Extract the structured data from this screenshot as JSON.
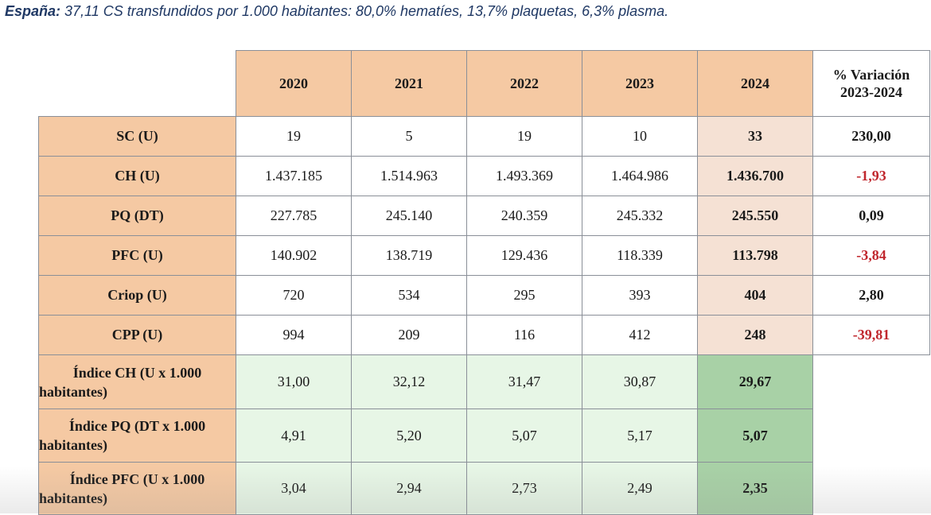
{
  "headline": {
    "bold": "España:",
    "text": " 37,11 CS transfundidos por 1.000 habitantes: 80,0% hematíes, 13,7% plaquetas, 6,3% plasma."
  },
  "table": {
    "years": [
      "2020",
      "2021",
      "2022",
      "2023",
      "2024"
    ],
    "variation_header": [
      "% Variación",
      "2023-2024"
    ],
    "rows": [
      {
        "label": "SC (U)",
        "values": [
          "19",
          "5",
          "19",
          "10",
          "33"
        ],
        "variation": "230,00"
      },
      {
        "label": "CH (U)",
        "values": [
          "1.437.185",
          "1.514.963",
          "1.493.369",
          "1.464.986",
          "1.436.700"
        ],
        "variation": "-1,93"
      },
      {
        "label": "PQ (DT)",
        "values": [
          "227.785",
          "245.140",
          "240.359",
          "245.332",
          "245.550"
        ],
        "variation": "0,09"
      },
      {
        "label": "PFC (U)",
        "values": [
          "140.902",
          "138.719",
          "129.436",
          "118.339",
          "113.798"
        ],
        "variation": "-3,84"
      },
      {
        "label": "Criop (U)",
        "values": [
          "720",
          "534",
          "295",
          "393",
          "404"
        ],
        "variation": "2,80"
      },
      {
        "label": "CPP (U)",
        "values": [
          "994",
          "209",
          "116",
          "412",
          "248"
        ],
        "variation": "-39,81"
      }
    ],
    "index_rows": [
      {
        "label": "Índice CH (U x 1.000 habitantes)",
        "values": [
          "31,00",
          "32,12",
          "31,47",
          "30,87",
          "29,67"
        ]
      },
      {
        "label": "Índice PQ (DT x 1.000 habitantes)",
        "values": [
          "4,91",
          "5,20",
          "5,07",
          "5,17",
          "5,07"
        ]
      },
      {
        "label": "Índice PFC (U x 1.000 habitantes)",
        "values": [
          "3,04",
          "2,94",
          "2,73",
          "2,49",
          "2,35"
        ]
      }
    ]
  }
}
